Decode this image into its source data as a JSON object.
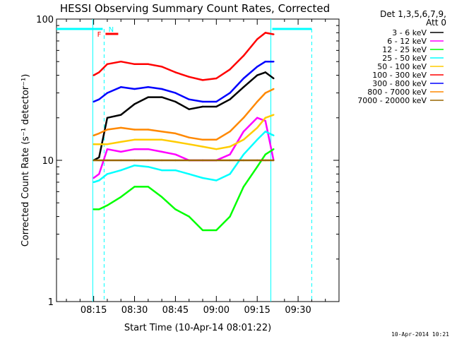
{
  "chart_data": {
    "type": "line",
    "title": "HESSI Observing Summary Count Rates, Corrected",
    "xlabel": "Start Time (10-Apr-14 08:01:22)",
    "ylabel": "Corrected Count Rate (s⁻¹ detector⁻¹)",
    "yscale": "log",
    "ylim": [
      1,
      100
    ],
    "xlim": [
      "08:01:22",
      "09:45:00"
    ],
    "x_ticks": [
      "08:15",
      "08:30",
      "08:45",
      "09:00",
      "09:15",
      "09:30"
    ],
    "y_ticks": [
      "1",
      "10",
      "100"
    ],
    "legend_title": [
      "Det 1,3,5,6,7,9,",
      "Att 0"
    ],
    "legend_placement": "right",
    "timestamp": "10-Apr-2014 10:21",
    "markers": {
      "flag_f": "F",
      "flag_n": "N",
      "data_start": "08:14:40",
      "data_end": "09:21:10",
      "dashed_lines": [
        "08:18:50",
        "09:35:00"
      ],
      "night_end": "08:18:50",
      "night_start": "09:20:00"
    },
    "x": [
      "08:15",
      "08:17",
      "08:20",
      "08:25",
      "08:30",
      "08:35",
      "08:40",
      "08:45",
      "08:50",
      "08:55",
      "09:00",
      "09:05",
      "09:10",
      "09:15",
      "09:18",
      "09:21"
    ],
    "series": [
      {
        "name": "3 - 6 keV",
        "color": "#000000",
        "values": [
          10,
          10.5,
          20,
          21,
          25,
          28,
          28,
          26,
          23,
          24,
          24,
          27,
          33,
          40,
          42,
          38
        ]
      },
      {
        "name": "6 - 12 keV",
        "color": "#ff00ff",
        "values": [
          7.5,
          8,
          12,
          11.5,
          12,
          12,
          11.5,
          11,
          10,
          10,
          10,
          11,
          16,
          20,
          19,
          10
        ]
      },
      {
        "name": "12 - 25 keV",
        "color": "#00ff00",
        "values": [
          4.5,
          4.5,
          4.8,
          5.5,
          6.5,
          6.5,
          5.5,
          4.5,
          4,
          3.2,
          3.2,
          4,
          6.5,
          9,
          11,
          12
        ]
      },
      {
        "name": "25 - 50 keV",
        "color": "#00ffff",
        "values": [
          7,
          7.2,
          8,
          8.5,
          9.2,
          9,
          8.5,
          8.5,
          8,
          7.5,
          7.2,
          8,
          11,
          14,
          16,
          15
        ]
      },
      {
        "name": "50 - 100 keV",
        "color": "#ffcc00",
        "values": [
          13,
          13,
          13,
          13.5,
          14,
          14,
          14,
          13.5,
          13,
          12.5,
          12,
          12.5,
          14,
          17,
          20,
          21
        ]
      },
      {
        "name": "100 - 300 keV",
        "color": "#ff0000",
        "values": [
          40,
          42,
          48,
          50,
          48,
          48,
          46,
          42,
          39,
          37,
          38,
          44,
          55,
          72,
          80,
          78
        ]
      },
      {
        "name": "300 - 800 keV",
        "color": "#0000ff",
        "values": [
          26,
          27,
          30,
          33,
          32,
          33,
          32,
          30,
          27,
          26,
          26,
          30,
          38,
          46,
          50,
          50
        ]
      },
      {
        "name": "800 - 7000 keV",
        "color": "#ff8800",
        "values": [
          15,
          15.5,
          16.5,
          17,
          16.5,
          16.5,
          16,
          15.5,
          14.5,
          14,
          14,
          16,
          20,
          26,
          30,
          32
        ]
      },
      {
        "name": "7000 - 20000 keV",
        "color": "#996600",
        "values": [
          10,
          10,
          10,
          10,
          10,
          10,
          10,
          10,
          10,
          10,
          10,
          10,
          10,
          10,
          10,
          10
        ]
      }
    ]
  }
}
